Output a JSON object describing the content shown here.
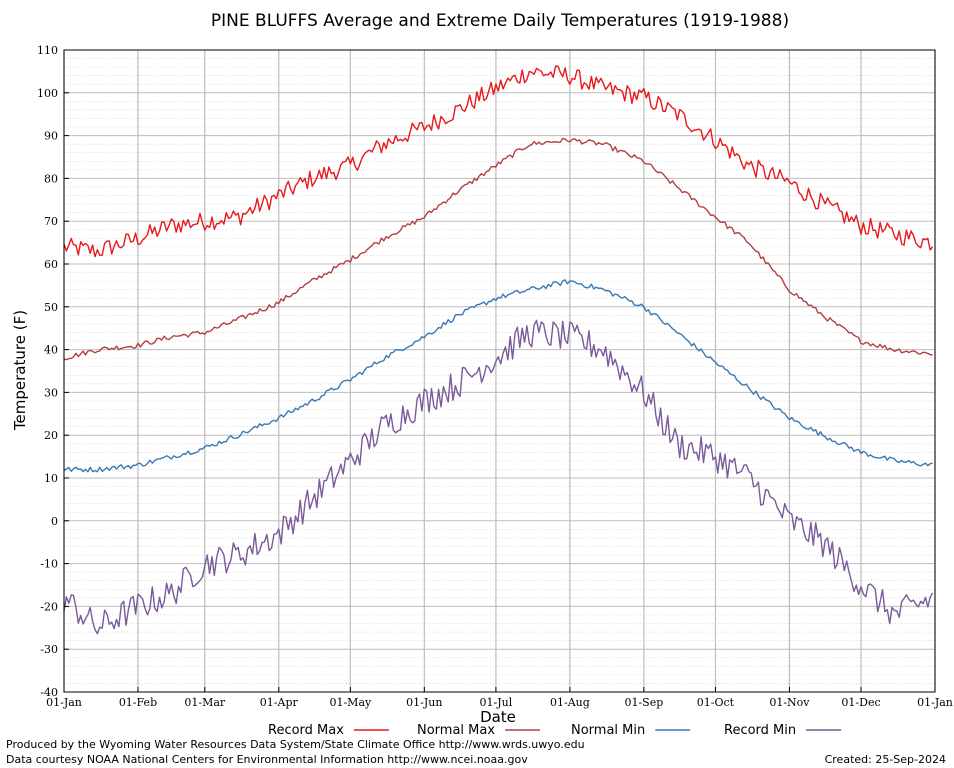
{
  "chart_data": {
    "type": "line",
    "title": "PINE BLUFFS Average and Extreme Daily Temperatures (1919-1988)",
    "xlabel": "Date",
    "ylabel": "Temperature (F)",
    "ylim": [
      -40,
      110
    ],
    "yticks": [
      "-40",
      "-30",
      "-20",
      "-10",
      "0",
      "10",
      "20",
      "30",
      "40",
      "50",
      "60",
      "70",
      "80",
      "90",
      "100",
      "110"
    ],
    "xlim_day": [
      1,
      366
    ],
    "xticks": [
      {
        "label": "01-Jan",
        "day": 1
      },
      {
        "label": "01-Feb",
        "day": 32
      },
      {
        "label": "01-Mar",
        "day": 60
      },
      {
        "label": "01-Apr",
        "day": 91
      },
      {
        "label": "01-May",
        "day": 121
      },
      {
        "label": "01-Jun",
        "day": 152
      },
      {
        "label": "01-Jul",
        "day": 182
      },
      {
        "label": "01-Aug",
        "day": 213
      },
      {
        "label": "01-Sep",
        "day": 244
      },
      {
        "label": "01-Oct",
        "day": 274
      },
      {
        "label": "01-Nov",
        "day": 305
      },
      {
        "label": "01-Dec",
        "day": 335
      },
      {
        "label": "01-Jan",
        "day": 366
      }
    ],
    "grid": true,
    "legend_position": "bottom",
    "series": [
      {
        "name": "Record Max",
        "color": "#e8191c",
        "x": [
          "01-Jan",
          "15-Jan",
          "01-Feb",
          "15-Feb",
          "01-Mar",
          "15-Mar",
          "01-Apr",
          "15-Apr",
          "01-May",
          "15-May",
          "01-Jun",
          "15-Jun",
          "01-Jul",
          "15-Jul",
          "01-Aug",
          "15-Aug",
          "01-Sep",
          "15-Sep",
          "01-Oct",
          "15-Oct",
          "01-Nov",
          "15-Nov",
          "01-Dec",
          "15-Dec",
          "31-Dec"
        ],
        "values": [
          64,
          63,
          66,
          69,
          70,
          71,
          76,
          80,
          83,
          88,
          92,
          96,
          101,
          105,
          104,
          101,
          99,
          95,
          89,
          83,
          79,
          74,
          69,
          67,
          65
        ]
      },
      {
        "name": "Normal Max",
        "color": "#b24042",
        "x": [
          "01-Jan",
          "15-Jan",
          "01-Feb",
          "15-Feb",
          "01-Mar",
          "15-Mar",
          "01-Apr",
          "15-Apr",
          "01-May",
          "15-May",
          "01-Jun",
          "15-Jun",
          "01-Jul",
          "15-Jul",
          "01-Aug",
          "15-Aug",
          "01-Sep",
          "15-Sep",
          "01-Oct",
          "15-Oct",
          "01-Nov",
          "15-Nov",
          "01-Dec",
          "15-Dec",
          "31-Dec"
        ],
        "values": [
          38,
          40,
          41,
          43,
          44,
          47,
          51,
          56,
          61,
          66,
          71,
          77,
          83,
          88,
          89,
          88,
          84,
          78,
          71,
          65,
          54,
          48,
          42,
          40,
          39
        ]
      },
      {
        "name": "Normal Min",
        "color": "#3c78b4",
        "x": [
          "01-Jan",
          "15-Jan",
          "01-Feb",
          "15-Feb",
          "01-Mar",
          "15-Mar",
          "01-Apr",
          "15-Apr",
          "01-May",
          "15-May",
          "01-Jun",
          "15-Jun",
          "01-Jul",
          "15-Jul",
          "01-Aug",
          "15-Aug",
          "01-Sep",
          "15-Sep",
          "01-Oct",
          "15-Oct",
          "01-Nov",
          "15-Nov",
          "01-Dec",
          "15-Dec",
          "31-Dec"
        ],
        "values": [
          12,
          12,
          13,
          15,
          17,
          20,
          24,
          28,
          33,
          38,
          43,
          48,
          52,
          54,
          56,
          54,
          50,
          44,
          37,
          31,
          24,
          20,
          16,
          14,
          13
        ]
      },
      {
        "name": "Record Min",
        "color": "#7a5a9a",
        "x": [
          "01-Jan",
          "15-Jan",
          "01-Feb",
          "15-Feb",
          "01-Mar",
          "15-Mar",
          "01-Apr",
          "15-Apr",
          "01-May",
          "15-May",
          "01-Jun",
          "15-Jun",
          "01-Jul",
          "15-Jul",
          "01-Aug",
          "15-Aug",
          "01-Sep",
          "15-Sep",
          "01-Oct",
          "15-Oct",
          "01-Nov",
          "15-Nov",
          "01-Dec",
          "15-Dec",
          "31-Dec"
        ],
        "values": [
          -18,
          -25,
          -20,
          -17,
          -10,
          -8,
          -3,
          5,
          14,
          22,
          28,
          32,
          38,
          44,
          43,
          40,
          30,
          18,
          15,
          10,
          0,
          -5,
          -15,
          -22,
          -18
        ]
      }
    ]
  },
  "footer": {
    "line1": "Produced by the Wyoming Water Resources Data System/State Climate Office http://www.wrds.uwyo.edu",
    "line2": "Data courtesy NOAA National Centers for Environmental Information http://www.ncei.noaa.gov",
    "created": "Created:  25-Sep-2024"
  }
}
